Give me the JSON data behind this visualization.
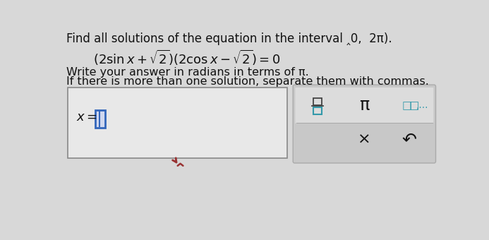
{
  "background_color": "#d8d8d8",
  "title_text": "Find all solutions of the equation in the interval ‸0, 2π).",
  "equation_latex": "$(2\\,\\sin x+\\sqrt{2})(2\\,\\cos x-\\sqrt{2})=0$",
  "instruction_line1": "Write your answer in radians in terms of π.",
  "instruction_line2": "If there is more than one solution, separate them with commas.",
  "x_label_latex": "$x =$",
  "input_box_facecolor": "#e8e8e8",
  "input_box_edgecolor": "#888888",
  "cursor_color": "#3366bb",
  "keypad_bg": "#c8c8c8",
  "keypad_top_bg": "#dcdcdc",
  "keypad_btn_bg": "#f0f0f0",
  "frac_color": "#444444",
  "frac_bottom_color": "#3399aa",
  "pi_color": "#111111",
  "dd_color": "#3399aa",
  "x_color": "#111111",
  "undo_color": "#111111",
  "arrow_red": "#993333",
  "arrow_dark": "#993333",
  "title_fontsize": 12,
  "eq_fontsize": 13,
  "instr_fontsize": 11.5
}
